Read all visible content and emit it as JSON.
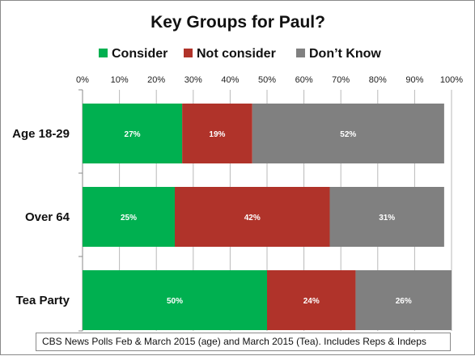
{
  "chart_data": {
    "type": "bar",
    "orientation": "horizontal",
    "stacked": true,
    "title": "Key Groups for Paul?",
    "categories": [
      "Age 18-29",
      "Over 64",
      "Tea Party"
    ],
    "series": [
      {
        "name": "Consider",
        "color": "#00b050",
        "values": [
          27,
          25,
          50
        ],
        "labels": [
          "27%",
          "25%",
          "50%"
        ]
      },
      {
        "name": "Not consider",
        "color": "#b0332a",
        "values": [
          19,
          42,
          24
        ],
        "labels": [
          "19%",
          "42%",
          "24%"
        ]
      },
      {
        "name": "Don’t Know",
        "color": "#808080",
        "values": [
          52,
          31,
          26
        ],
        "labels": [
          "52%",
          "31%",
          "26%"
        ]
      }
    ],
    "xlim": [
      0,
      100
    ],
    "x_ticks": [
      "0%",
      "10%",
      "20%",
      "30%",
      "40%",
      "50%",
      "60%",
      "70%",
      "80%",
      "90%",
      "100%"
    ],
    "grid": true,
    "legend_position": "top",
    "source_note": "CBS News Polls Feb & March 2015 (age) and March 2015 (Tea). Includes Reps & Indeps"
  }
}
